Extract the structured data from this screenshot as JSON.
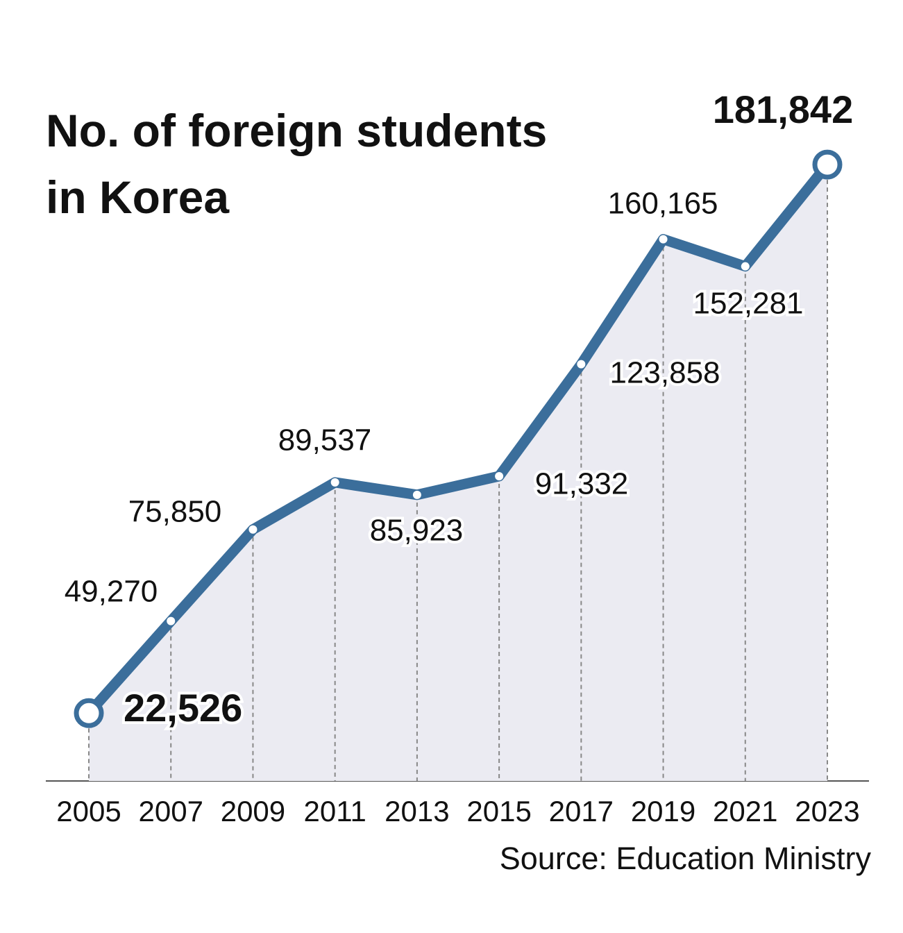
{
  "chart_data": {
    "type": "line",
    "title": "No. of foreign students in Korea",
    "x": [
      2005,
      2007,
      2009,
      2011,
      2013,
      2015,
      2017,
      2019,
      2021,
      2023
    ],
    "xlim": [
      2005,
      2023
    ],
    "series": [
      {
        "name": "Foreign students",
        "color": "#3b6e9b",
        "values": [
          22526,
          49270,
          75850,
          89537,
          85923,
          91332,
          123858,
          160165,
          152281,
          181842
        ],
        "value_labels": [
          "22,526",
          "49,270",
          "75,850",
          "89,537",
          "85,923",
          "91,332",
          "123,858",
          "160,165",
          "152,281",
          "181,842"
        ]
      }
    ],
    "ylim": [
      0,
      200000
    ],
    "source": "Source: Education Ministry"
  }
}
